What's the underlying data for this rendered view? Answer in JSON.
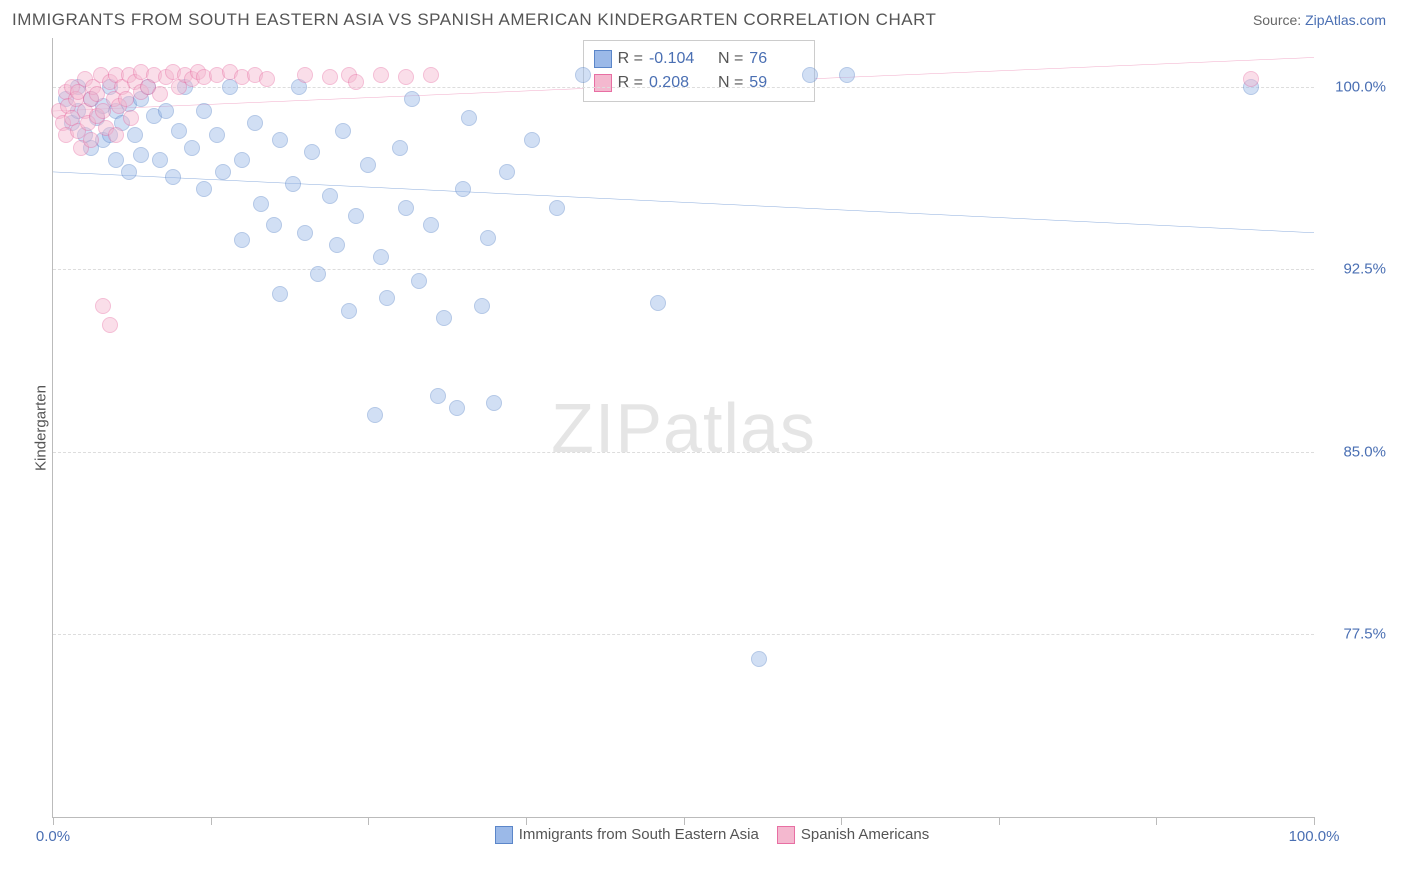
{
  "title": "IMMIGRANTS FROM SOUTH EASTERN ASIA VS SPANISH AMERICAN KINDERGARTEN CORRELATION CHART",
  "source_label": "Source:",
  "source_link": "ZipAtlas.com",
  "yaxis_label": "Kindergarten",
  "watermark": "ZIPatlas",
  "chart": {
    "type": "scatter",
    "xlim": [
      0,
      100
    ],
    "ylim": [
      70,
      102
    ],
    "x_ticks": [
      0,
      12.5,
      25,
      37.5,
      50,
      62.5,
      75,
      87.5,
      100
    ],
    "x_tick_labels": {
      "0": "0.0%",
      "100": "100.0%"
    },
    "y_gridlines": [
      77.5,
      85.0,
      92.5,
      100.0
    ],
    "y_tick_labels": [
      "77.5%",
      "85.0%",
      "92.5%",
      "100.0%"
    ],
    "grid_color": "#dddddd",
    "axis_color": "#bbbbbb",
    "background_color": "#ffffff",
    "marker_radius": 8,
    "marker_opacity": 0.45,
    "series": [
      {
        "name": "Immigrants from South Eastern Asia",
        "color_fill": "#9bb9e8",
        "color_stroke": "#5b86c9",
        "R": "-0.104",
        "N": "76",
        "trend": {
          "y_at_x0": 96.5,
          "y_at_x100": 94.0,
          "color": "#3b72c4",
          "width": 2.5
        },
        "points": [
          [
            1,
            99.5
          ],
          [
            1.5,
            98.5
          ],
          [
            2,
            100
          ],
          [
            2,
            99
          ],
          [
            2.5,
            98
          ],
          [
            3,
            99.5
          ],
          [
            3,
            97.5
          ],
          [
            3.5,
            98.7
          ],
          [
            4,
            99.2
          ],
          [
            4,
            97.8
          ],
          [
            4.5,
            100
          ],
          [
            4.5,
            98
          ],
          [
            5,
            99
          ],
          [
            5,
            97
          ],
          [
            5.5,
            98.5
          ],
          [
            6,
            99.3
          ],
          [
            6,
            96.5
          ],
          [
            6.5,
            98
          ],
          [
            7,
            99.5
          ],
          [
            7,
            97.2
          ],
          [
            7.5,
            100
          ],
          [
            8,
            98.8
          ],
          [
            8.5,
            97
          ],
          [
            9,
            99
          ],
          [
            9.5,
            96.3
          ],
          [
            10,
            98.2
          ],
          [
            10.5,
            100
          ],
          [
            11,
            97.5
          ],
          [
            12,
            99
          ],
          [
            12,
            95.8
          ],
          [
            13,
            98
          ],
          [
            13.5,
            96.5
          ],
          [
            14,
            100
          ],
          [
            15,
            97
          ],
          [
            15,
            93.7
          ],
          [
            16,
            98.5
          ],
          [
            16.5,
            95.2
          ],
          [
            17.5,
            94.3
          ],
          [
            18,
            97.8
          ],
          [
            18,
            91.5
          ],
          [
            19,
            96
          ],
          [
            19.5,
            100
          ],
          [
            20,
            94
          ],
          [
            20.5,
            97.3
          ],
          [
            21,
            92.3
          ],
          [
            22,
            95.5
          ],
          [
            22.5,
            93.5
          ],
          [
            23,
            98.2
          ],
          [
            23.5,
            90.8
          ],
          [
            24,
            94.7
          ],
          [
            25,
            96.8
          ],
          [
            25.5,
            86.5
          ],
          [
            26,
            93
          ],
          [
            26.5,
            91.3
          ],
          [
            27.5,
            97.5
          ],
          [
            28,
            95
          ],
          [
            28.5,
            99.5
          ],
          [
            29,
            92
          ],
          [
            30,
            94.3
          ],
          [
            30.5,
            87.3
          ],
          [
            31,
            90.5
          ],
          [
            32,
            86.8
          ],
          [
            32.5,
            95.8
          ],
          [
            33,
            98.7
          ],
          [
            34,
            91
          ],
          [
            34.5,
            93.8
          ],
          [
            35,
            87
          ],
          [
            36,
            96.5
          ],
          [
            38,
            97.8
          ],
          [
            40,
            95
          ],
          [
            42,
            100.5
          ],
          [
            48,
            91.1
          ],
          [
            60,
            100.5
          ],
          [
            63,
            100.5
          ],
          [
            56,
            76.5
          ],
          [
            95,
            100
          ]
        ]
      },
      {
        "name": "Spanish Americans",
        "color_fill": "#f4b8cf",
        "color_stroke": "#e86fa3",
        "R": "0.208",
        "N": "59",
        "trend": {
          "y_at_x0": 99.0,
          "y_at_x100": 101.2,
          "color": "#e86fa3",
          "width": 2.5
        },
        "points": [
          [
            0.5,
            99
          ],
          [
            0.8,
            98.5
          ],
          [
            1,
            99.8
          ],
          [
            1,
            98
          ],
          [
            1.2,
            99.2
          ],
          [
            1.5,
            100
          ],
          [
            1.5,
            98.7
          ],
          [
            1.8,
            99.5
          ],
          [
            2,
            98.2
          ],
          [
            2,
            99.8
          ],
          [
            2.2,
            97.5
          ],
          [
            2.5,
            99
          ],
          [
            2.5,
            100.3
          ],
          [
            2.8,
            98.5
          ],
          [
            3,
            99.5
          ],
          [
            3,
            97.8
          ],
          [
            3.2,
            100
          ],
          [
            3.5,
            98.8
          ],
          [
            3.5,
            99.7
          ],
          [
            3.8,
            100.5
          ],
          [
            4,
            99
          ],
          [
            4.2,
            98.3
          ],
          [
            4.5,
            100.2
          ],
          [
            4.8,
            99.5
          ],
          [
            5,
            100.5
          ],
          [
            5,
            98
          ],
          [
            5.2,
            99.2
          ],
          [
            5.5,
            100
          ],
          [
            5.8,
            99.5
          ],
          [
            6,
            100.5
          ],
          [
            6.2,
            98.7
          ],
          [
            6.5,
            100.2
          ],
          [
            7,
            99.8
          ],
          [
            7,
            100.6
          ],
          [
            7.5,
            100
          ],
          [
            8,
            100.5
          ],
          [
            8.5,
            99.7
          ],
          [
            9,
            100.4
          ],
          [
            9.5,
            100.6
          ],
          [
            10,
            100
          ],
          [
            10.5,
            100.5
          ],
          [
            11,
            100.3
          ],
          [
            11.5,
            100.6
          ],
          [
            12,
            100.4
          ],
          [
            13,
            100.5
          ],
          [
            14,
            100.6
          ],
          [
            15,
            100.4
          ],
          [
            16,
            100.5
          ],
          [
            17,
            100.3
          ],
          [
            4,
            91
          ],
          [
            4.5,
            90.2
          ],
          [
            20,
            100.5
          ],
          [
            22,
            100.4
          ],
          [
            23.5,
            100.5
          ],
          [
            24,
            100.2
          ],
          [
            26,
            100.5
          ],
          [
            28,
            100.4
          ],
          [
            30,
            100.5
          ],
          [
            95,
            100.3
          ]
        ]
      }
    ]
  },
  "stats_legend": {
    "rows": [
      {
        "swatch_fill": "#9bb9e8",
        "swatch_stroke": "#5b86c9",
        "R_label": "R =",
        "R": "-0.104",
        "N_label": "N =",
        "N": "76"
      },
      {
        "swatch_fill": "#f4b8cf",
        "swatch_stroke": "#e86fa3",
        "R_label": "R =",
        "R": "0.208",
        "N_label": "N =",
        "N": "59"
      }
    ]
  },
  "bottom_legend": [
    {
      "swatch_fill": "#9bb9e8",
      "swatch_stroke": "#5b86c9",
      "label": "Immigrants from South Eastern Asia"
    },
    {
      "swatch_fill": "#f4b8cf",
      "swatch_stroke": "#e86fa3",
      "label": "Spanish Americans"
    }
  ]
}
